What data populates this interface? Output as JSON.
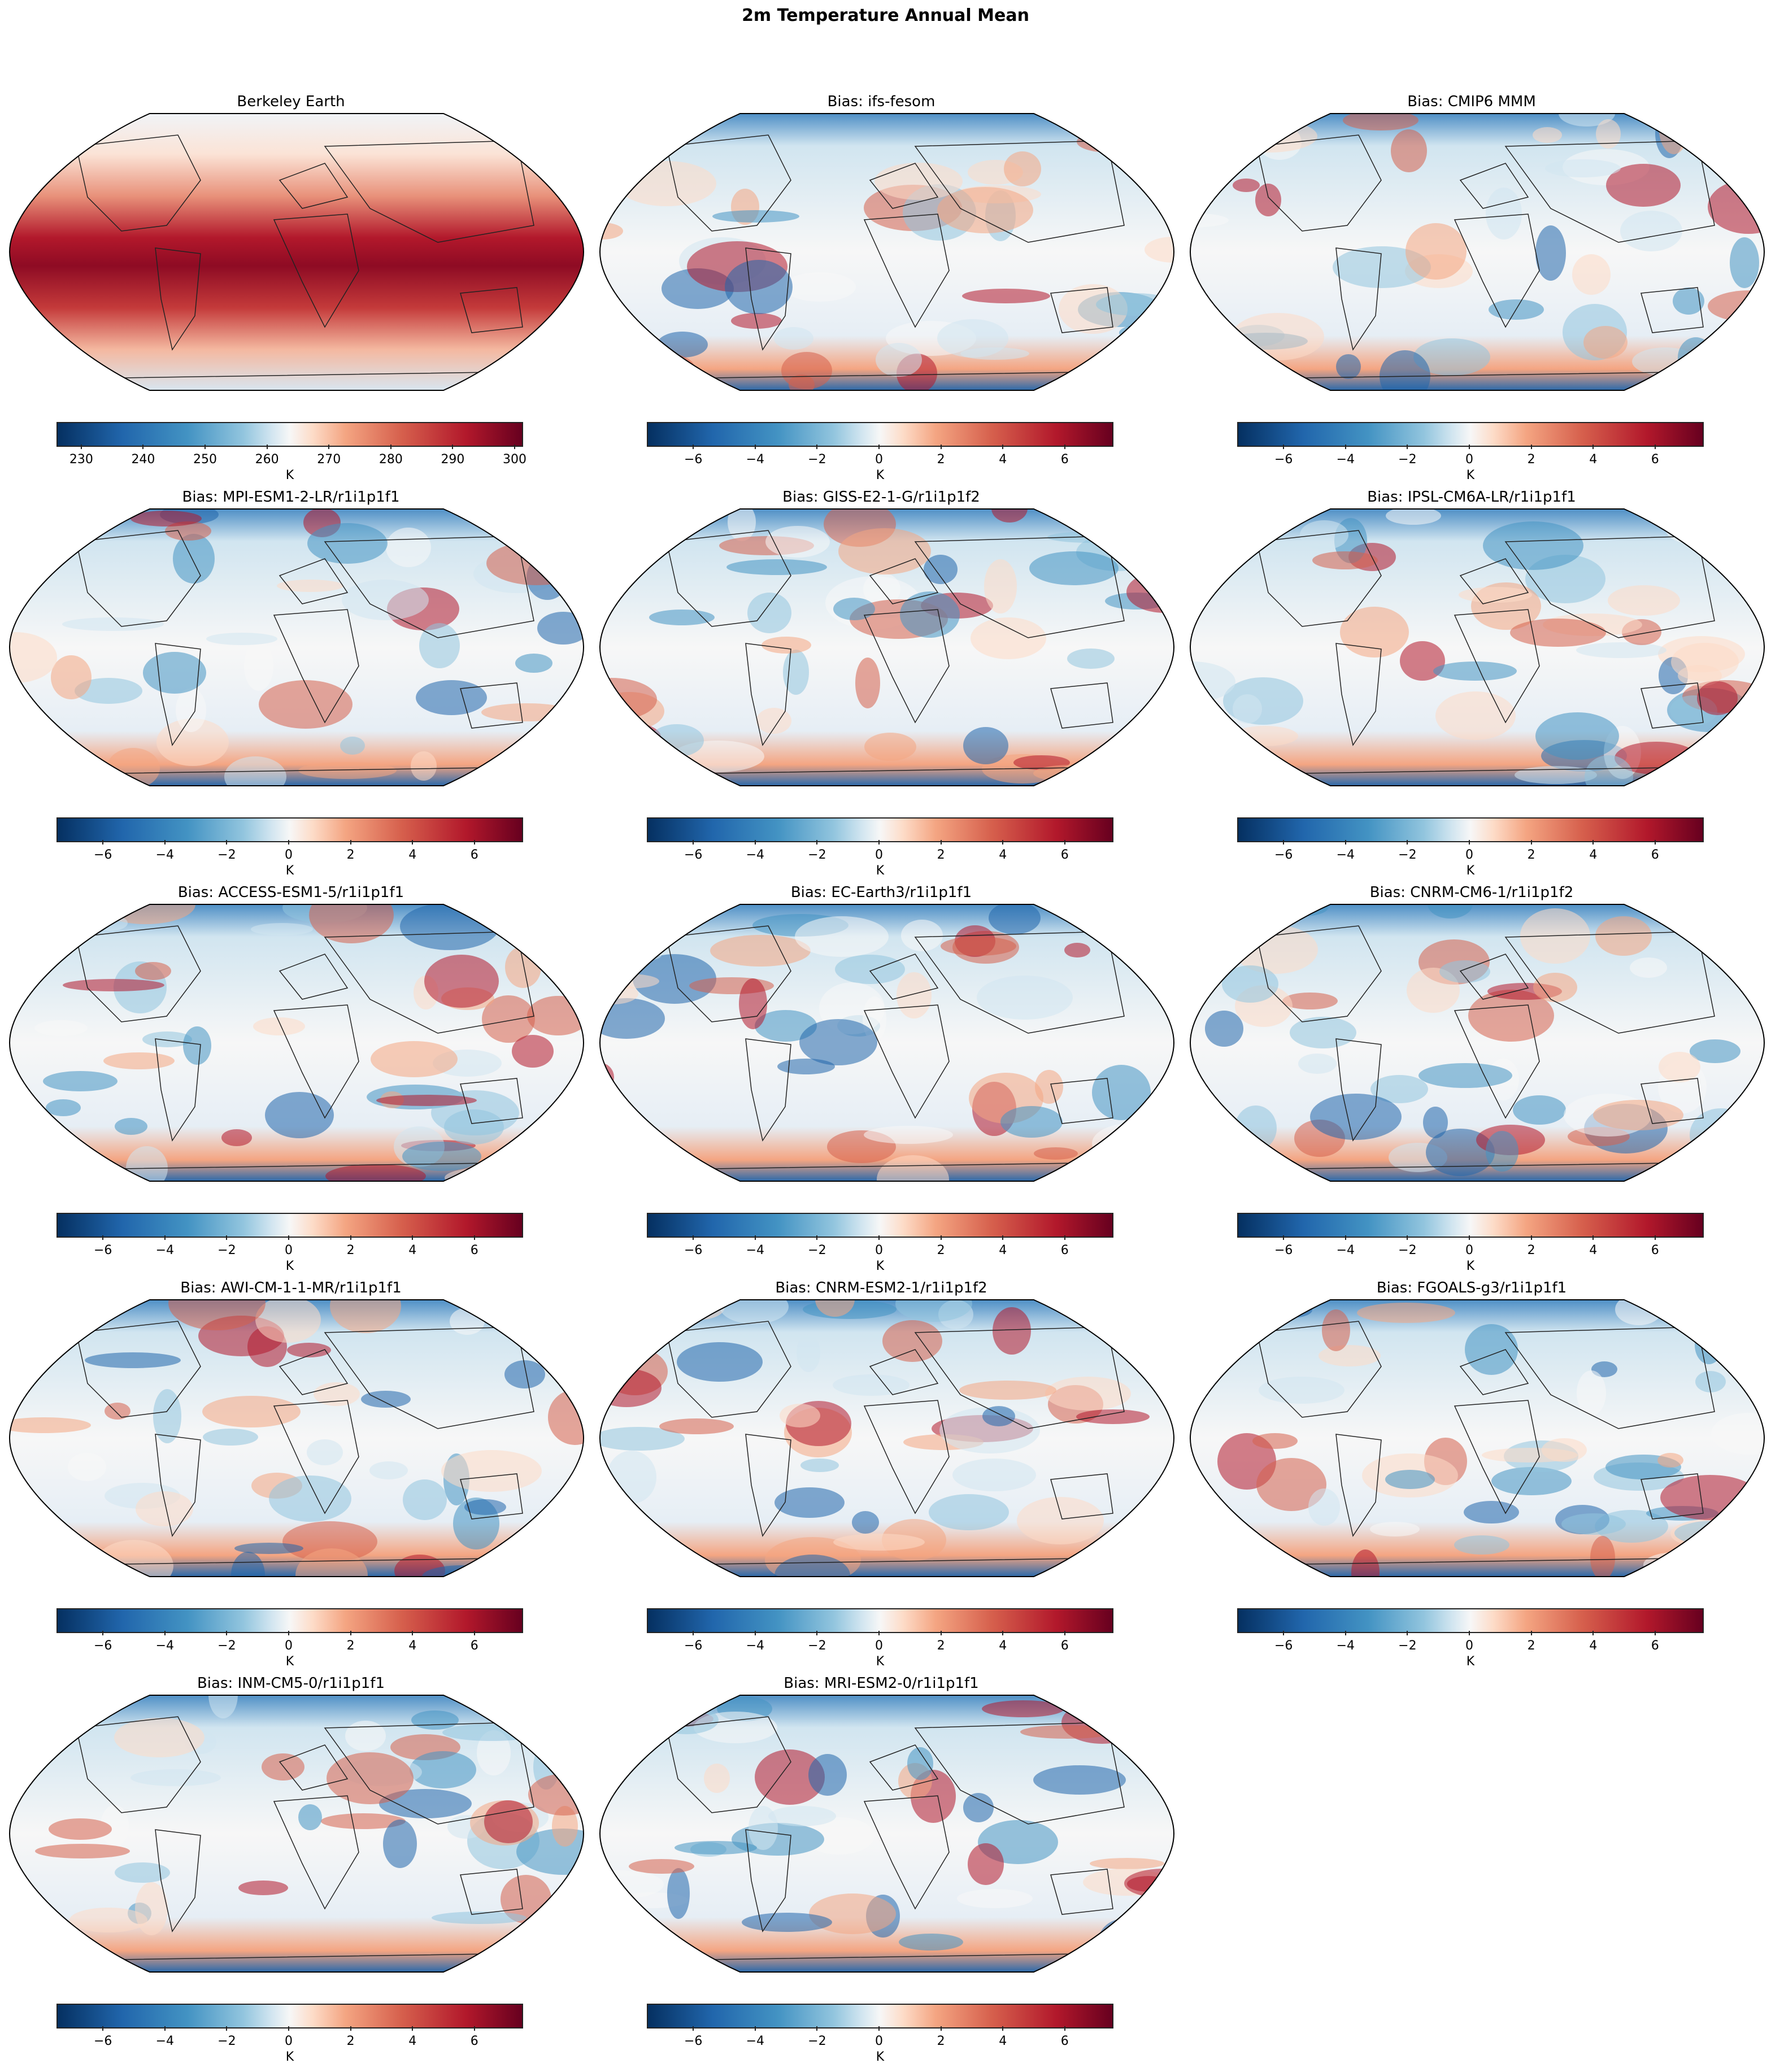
{
  "chart_data": {
    "type": "heatmap",
    "title": "2m Temperature Annual Mean",
    "projection": "Robinson (global)",
    "colormap": "RdBu_r",
    "panels": [
      {
        "title": "Berkeley Earth",
        "kind": "absolute",
        "unit": "K",
        "vmin": 226,
        "vmax": 301,
        "ticks": [
          230,
          240,
          250,
          260,
          270,
          280,
          290,
          300
        ],
        "colorbar_label": "K"
      },
      {
        "title": "Bias: ifs-fesom",
        "kind": "bias",
        "unit": "K",
        "vmin": -7.5,
        "vmax": 7.5,
        "ticks": [
          -6,
          -4,
          -2,
          0,
          2,
          4,
          6
        ],
        "colorbar_label": "K"
      },
      {
        "title": "Bias: CMIP6 MMM",
        "kind": "bias",
        "unit": "K",
        "vmin": -7.5,
        "vmax": 7.5,
        "ticks": [
          -6,
          -4,
          -2,
          0,
          2,
          4,
          6
        ],
        "colorbar_label": "K"
      },
      {
        "title": "Bias: MPI-ESM1-2-LR/r1i1p1f1",
        "kind": "bias",
        "unit": "K",
        "vmin": -7.5,
        "vmax": 7.5,
        "ticks": [
          -6,
          -4,
          -2,
          0,
          2,
          4,
          6
        ],
        "colorbar_label": "K"
      },
      {
        "title": "Bias: GISS-E2-1-G/r1i1p1f2",
        "kind": "bias",
        "unit": "K",
        "vmin": -7.5,
        "vmax": 7.5,
        "ticks": [
          -6,
          -4,
          -2,
          0,
          2,
          4,
          6
        ],
        "colorbar_label": "K"
      },
      {
        "title": "Bias: IPSL-CM6A-LR/r1i1p1f1",
        "kind": "bias",
        "unit": "K",
        "vmin": -7.5,
        "vmax": 7.5,
        "ticks": [
          -6,
          -4,
          -2,
          0,
          2,
          4,
          6
        ],
        "colorbar_label": "K"
      },
      {
        "title": "Bias: ACCESS-ESM1-5/r1i1p1f1",
        "kind": "bias",
        "unit": "K",
        "vmin": -7.5,
        "vmax": 7.5,
        "ticks": [
          -6,
          -4,
          -2,
          0,
          2,
          4,
          6
        ],
        "colorbar_label": "K"
      },
      {
        "title": "Bias: EC-Earth3/r1i1p1f1",
        "kind": "bias",
        "unit": "K",
        "vmin": -7.5,
        "vmax": 7.5,
        "ticks": [
          -6,
          -4,
          -2,
          0,
          2,
          4,
          6
        ],
        "colorbar_label": "K"
      },
      {
        "title": "Bias: CNRM-CM6-1/r1i1p1f2",
        "kind": "bias",
        "unit": "K",
        "vmin": -7.5,
        "vmax": 7.5,
        "ticks": [
          -6,
          -4,
          -2,
          0,
          2,
          4,
          6
        ],
        "colorbar_label": "K"
      },
      {
        "title": "Bias: AWI-CM-1-1-MR/r1i1p1f1",
        "kind": "bias",
        "unit": "K",
        "vmin": -7.5,
        "vmax": 7.5,
        "ticks": [
          -6,
          -4,
          -2,
          0,
          2,
          4,
          6
        ],
        "colorbar_label": "K"
      },
      {
        "title": "Bias: CNRM-ESM2-1/r1i1p1f2",
        "kind": "bias",
        "unit": "K",
        "vmin": -7.5,
        "vmax": 7.5,
        "ticks": [
          -6,
          -4,
          -2,
          0,
          2,
          4,
          6
        ],
        "colorbar_label": "K"
      },
      {
        "title": "Bias: FGOALS-g3/r1i1p1f1",
        "kind": "bias",
        "unit": "K",
        "vmin": -7.5,
        "vmax": 7.5,
        "ticks": [
          -6,
          -4,
          -2,
          0,
          2,
          4,
          6
        ],
        "colorbar_label": "K"
      },
      {
        "title": "Bias: INM-CM5-0/r1i1p1f1",
        "kind": "bias",
        "unit": "K",
        "vmin": -7.5,
        "vmax": 7.5,
        "ticks": [
          -6,
          -4,
          -2,
          0,
          2,
          4,
          6
        ],
        "colorbar_label": "K"
      },
      {
        "title": "Bias: MRI-ESM2-0/r1i1p1f1",
        "kind": "bias",
        "unit": "K",
        "vmin": -7.5,
        "vmax": 7.5,
        "ticks": [
          -6,
          -4,
          -2,
          0,
          2,
          4,
          6
        ],
        "colorbar_label": "K"
      }
    ],
    "grid": {
      "rows": 5,
      "cols": 3
    }
  },
  "figure": {
    "title": "2m Temperature Annual Mean"
  },
  "colors": {
    "neg": "#053061",
    "mid": "#f7f7f7",
    "pos": "#67001f"
  }
}
